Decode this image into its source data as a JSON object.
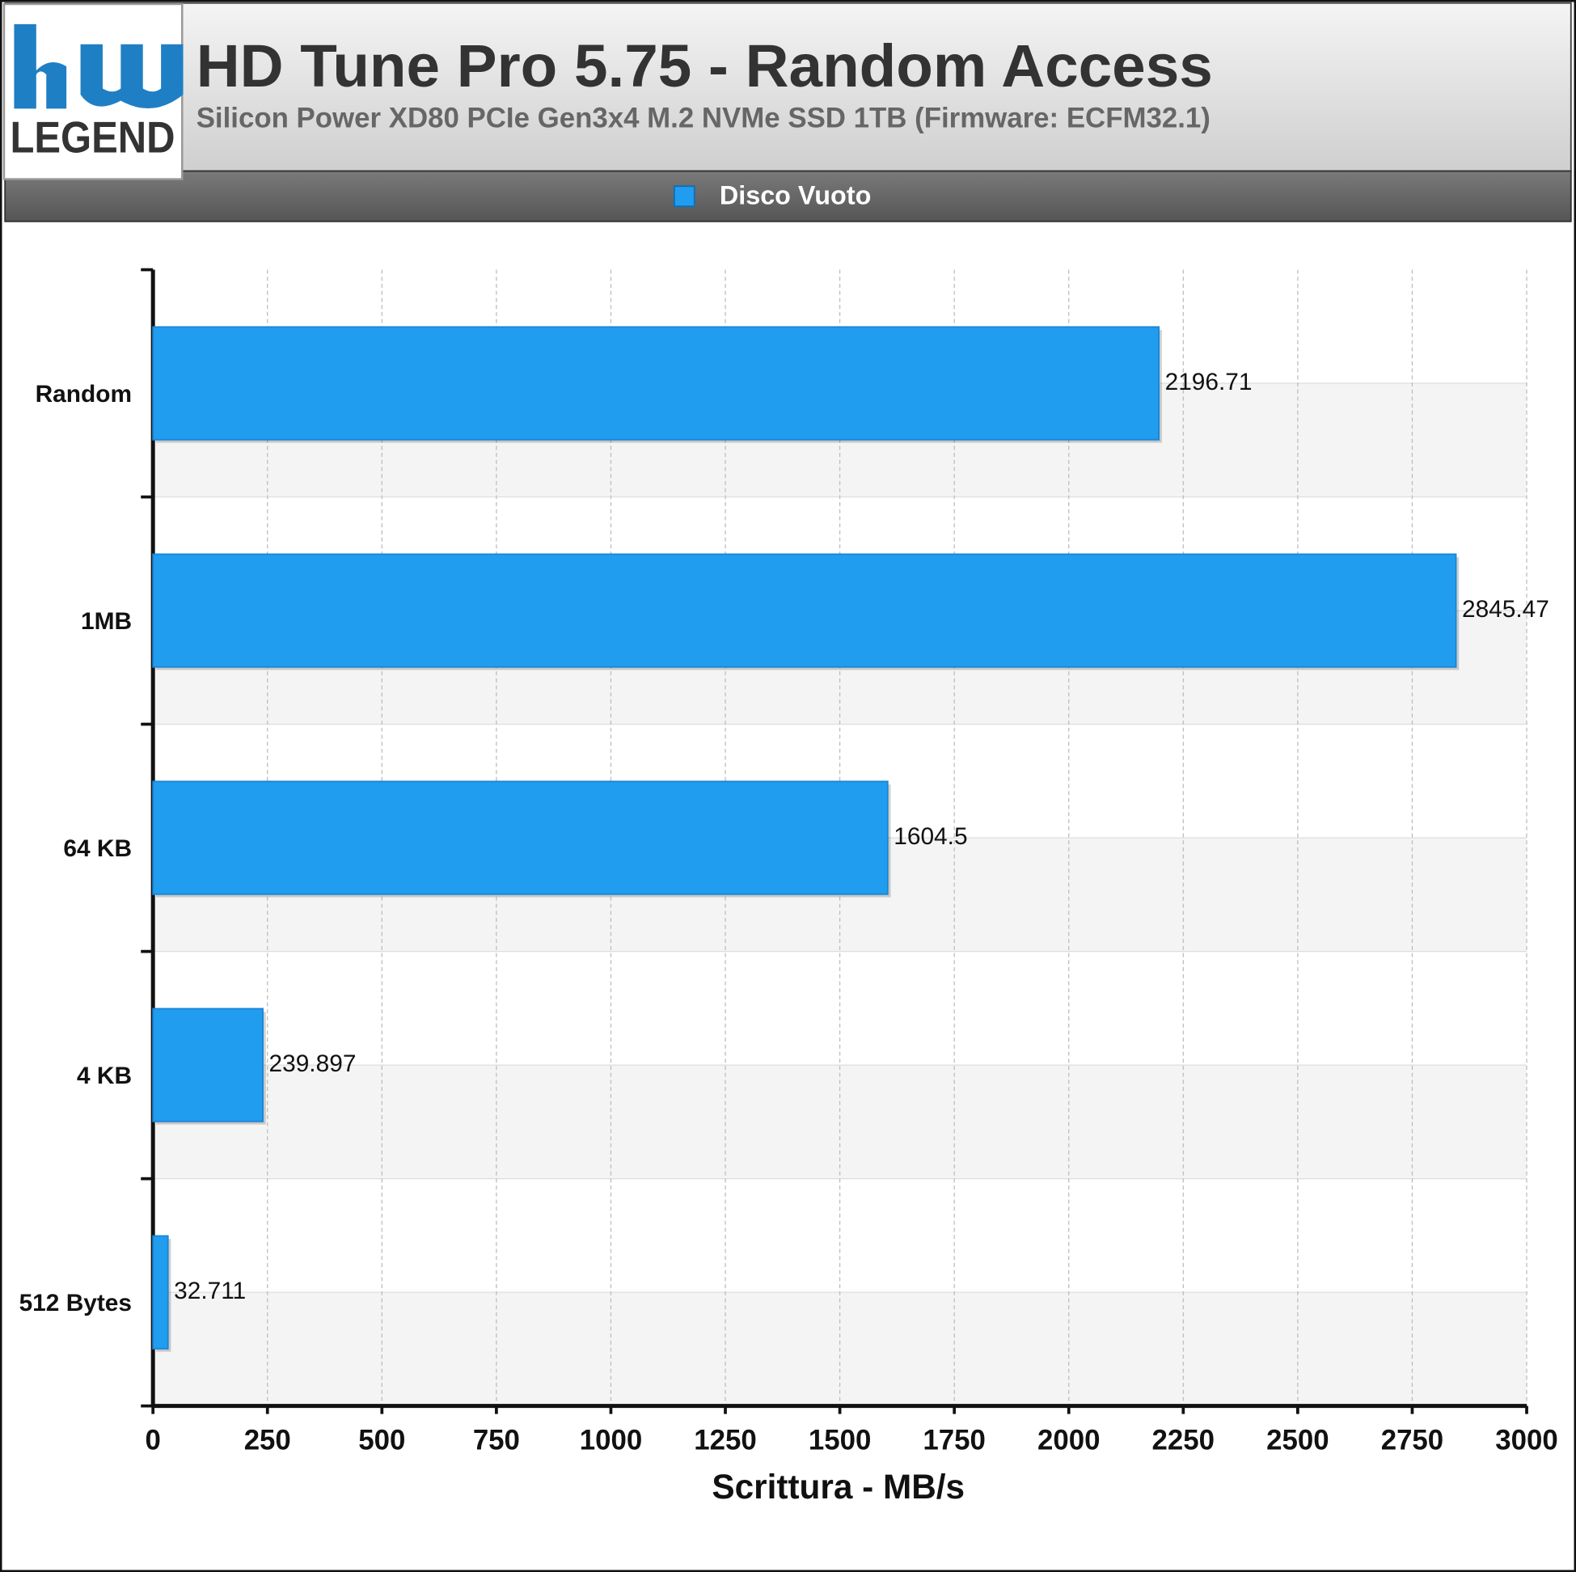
{
  "logo": {
    "text": "LEGEND"
  },
  "chart_data": {
    "type": "bar",
    "orientation": "horizontal",
    "title": "HD Tune Pro 5.75 - Random Access",
    "subtitle": "Silicon Power XD80 PCIe Gen3x4 M.2 NVMe SSD 1TB (Firmware: ECFM32.1)",
    "xlabel": "Scrittura - MB/s",
    "categories": [
      "Random",
      "1MB",
      "64 KB",
      "4 KB",
      "512 Bytes"
    ],
    "series": [
      {
        "name": "Disco Vuoto",
        "color": "#219df0",
        "values": [
          2196.71,
          2845.47,
          1604.5,
          239.897,
          32.711
        ]
      }
    ],
    "xlim": [
      0,
      3000
    ],
    "xticks": [
      0,
      250,
      500,
      750,
      1000,
      1250,
      1500,
      1750,
      2000,
      2250,
      2500,
      2750,
      3000
    ],
    "grid": true,
    "legend": "top"
  }
}
